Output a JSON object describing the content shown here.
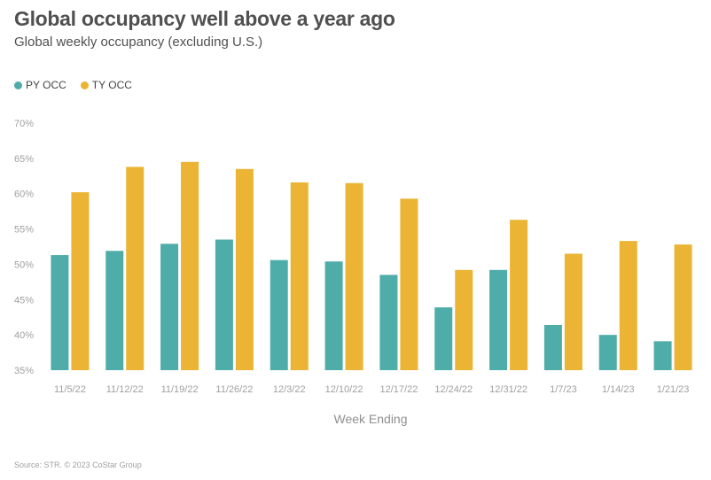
{
  "title": "Global occupancy well above a year ago",
  "subtitle": "Global weekly occupancy (excluding U.S.)",
  "source": "Source: STR. © 2023 CoStar Group",
  "colors": {
    "py": "#4fada9",
    "ty": "#ebb434"
  },
  "chart_data": {
    "type": "bar",
    "title": "Global occupancy well above a year ago",
    "subtitle": "Global weekly occupancy (excluding U.S.)",
    "xlabel": "Week Ending",
    "ylabel": "",
    "ylim": [
      35,
      70
    ],
    "yticks": [
      35,
      40,
      45,
      50,
      55,
      60,
      65,
      70
    ],
    "ytick_labels": [
      "35%",
      "40%",
      "45%",
      "50%",
      "55%",
      "60%",
      "65%",
      "70%"
    ],
    "legend_position": "top-left",
    "grid": false,
    "categories": [
      "11/5/22",
      "11/12/22",
      "11/19/22",
      "11/26/22",
      "12/3/22",
      "12/10/22",
      "12/17/22",
      "12/24/22",
      "12/31/22",
      "1/7/23",
      "1/14/23",
      "1/21/23"
    ],
    "series": [
      {
        "name": "PY OCC",
        "color": "#4fada9",
        "values": [
          51.3,
          51.9,
          52.9,
          53.5,
          50.6,
          50.4,
          48.5,
          43.9,
          49.2,
          41.4,
          40.0,
          39.1
        ]
      },
      {
        "name": "TY OCC",
        "color": "#ebb434",
        "values": [
          60.2,
          63.8,
          64.5,
          63.5,
          61.6,
          61.5,
          59.3,
          49.2,
          56.3,
          51.5,
          53.3,
          52.8
        ]
      }
    ]
  }
}
